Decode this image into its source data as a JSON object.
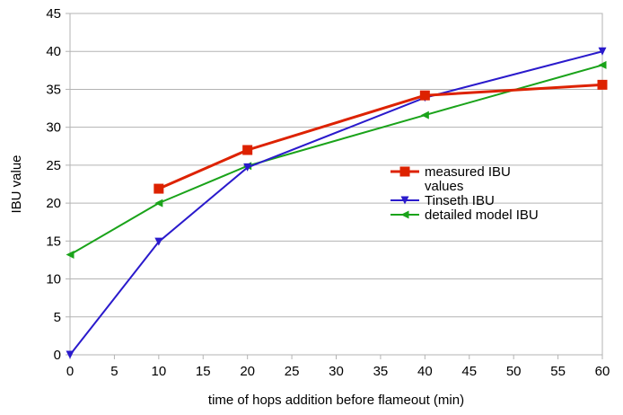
{
  "chart_data": {
    "type": "line",
    "title": "",
    "xlabel": "time of hops addition before flameout (min)",
    "ylabel": "IBU value",
    "xlim": [
      0,
      60
    ],
    "ylim": [
      0,
      45
    ],
    "x_ticks": [
      0,
      5,
      10,
      15,
      20,
      25,
      30,
      35,
      40,
      45,
      50,
      55,
      60
    ],
    "y_ticks": [
      0,
      5,
      10,
      15,
      20,
      25,
      30,
      35,
      40,
      45
    ],
    "grid": "horizontal",
    "legend_position": "right",
    "series": [
      {
        "name": "measured IBU values",
        "legend_lines": [
          "measured IBU",
          "values"
        ],
        "color": "#dd2200",
        "marker": "square",
        "x": [
          10,
          20,
          40,
          60
        ],
        "y": [
          21.9,
          27.0,
          34.2,
          35.6
        ]
      },
      {
        "name": "Tinseth IBU",
        "legend_lines": [
          "Tinseth IBU"
        ],
        "color": "#2a1acc",
        "marker": "triangle-down",
        "x": [
          0,
          10,
          20,
          40,
          60
        ],
        "y": [
          0,
          14.9,
          24.7,
          33.9,
          40.0
        ]
      },
      {
        "name": "detailed model IBU",
        "legend_lines": [
          "detailed model IBU"
        ],
        "color": "#1aa31a",
        "marker": "triangle-left",
        "x": [
          0,
          10,
          20,
          40,
          60
        ],
        "y": [
          13.2,
          20.0,
          24.9,
          31.6,
          38.2
        ]
      }
    ]
  }
}
